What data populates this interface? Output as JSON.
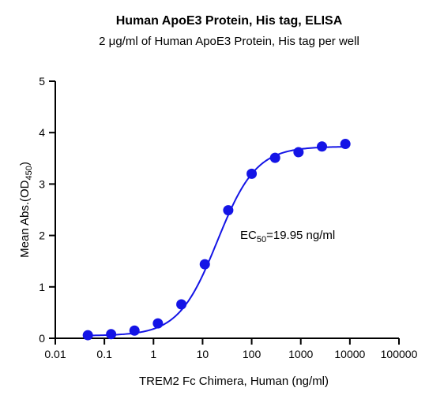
{
  "chart_data": {
    "type": "scatter",
    "title": "Human ApoE3 Protein, His tag, ELISA",
    "subtitle": "2 μg/ml of Human ApoE3 Protein, His tag per well",
    "xlabel": "TREM2 Fc Chimera, Human (ng/ml)",
    "ylabel": {
      "main": "Mean Abs.(OD",
      "sub": "450",
      "end": ")"
    },
    "x_scale": "log",
    "xlim": [
      0.01,
      100000
    ],
    "ylim": [
      0,
      5
    ],
    "x_ticks": [
      0.01,
      0.1,
      1,
      10,
      100,
      1000,
      10000,
      100000
    ],
    "x_tick_labels": [
      "0.01",
      "0.1",
      "1",
      "10",
      "100",
      "1000",
      "10000",
      "100000"
    ],
    "y_ticks": [
      0,
      1,
      2,
      3,
      4,
      5
    ],
    "y_tick_labels": [
      "0",
      "1",
      "2",
      "3",
      "4",
      "5"
    ],
    "grid": false,
    "series": [
      {
        "color": "#1414e6",
        "x": [
          0.046,
          0.137,
          0.41,
          1.23,
          3.7,
          11.1,
          33.3,
          100,
          300,
          900,
          2700,
          8100
        ],
        "y": [
          0.06,
          0.08,
          0.15,
          0.29,
          0.66,
          1.44,
          2.49,
          3.2,
          3.51,
          3.62,
          3.73,
          3.78
        ]
      }
    ],
    "fit_curve": {
      "type": "4PL",
      "bottom": 0.05,
      "top": 3.73,
      "ec50": 19.95,
      "hill": 1.1
    },
    "annotation": {
      "main": "EC",
      "sub": "50",
      "end": "=19.95 ng/ml"
    }
  }
}
